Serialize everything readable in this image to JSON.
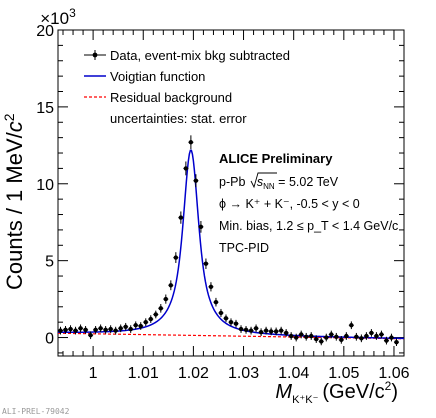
{
  "chart_data": {
    "type": "scatter",
    "xlabel_main": "M",
    "xlabel_sub": "K⁺K⁻",
    "xlabel_unit_pre": "(GeV/c",
    "xlabel_unit_sup": "2",
    "xlabel_unit_post": ")",
    "ylabel_pre": "Counts / 1 MeV/",
    "ylabel_c": "c",
    "ylabel_sup": "2",
    "y_multiplier_base": "×10",
    "y_multiplier_exp": "3",
    "xlim": [
      0.993,
      1.062
    ],
    "ylim": [
      -1.2,
      20
    ],
    "x_ticks": [
      1,
      1.01,
      1.02,
      1.03,
      1.04,
      1.05,
      1.06
    ],
    "x_tick_labels": [
      "1",
      "1.01",
      "1.02",
      "1.03",
      "1.04",
      "1.05",
      "1.06"
    ],
    "y_ticks": [
      0,
      5,
      10,
      15,
      20
    ],
    "y_tick_labels": [
      "0",
      "5",
      "10",
      "15",
      "20"
    ],
    "legend": [
      {
        "label": "Data, event-mix bkg subtracted",
        "style": "marker",
        "color": "#000000"
      },
      {
        "label": "Voigtian function",
        "style": "line",
        "color": "#0000cc"
      },
      {
        "label": "Residual background",
        "style": "dashed",
        "color": "#ff0000"
      },
      {
        "label": "uncertainties: stat. error",
        "style": "none",
        "color": "#000000"
      }
    ],
    "annotations": {
      "title": "ALICE Preliminary",
      "system_pre": "p-Pb ",
      "system_sqrt": "s",
      "system_sub": "NN",
      "system_post": " = 5.02 TeV",
      "decay": "ϕ → K⁺ + K⁻, -0.5 < y < 0",
      "selection": "Min. bias, 1.2 ≤ p_T < 1.4 GeV/c",
      "pid": "TPC-PID"
    },
    "fit": {
      "mass": 1.0195,
      "width": 0.00426,
      "sigma": 0.0012,
      "peak": 12.2,
      "bkg_intercept_x": 0.993,
      "bkg_intercept_y": 0.28,
      "bkg_end_x": 1.062,
      "bkg_end_y": -0.08
    },
    "series": [
      {
        "name": "Data, event-mix bkg subtracted",
        "x": [
          0.9935,
          0.9945,
          0.9955,
          0.9965,
          0.9975,
          0.9985,
          0.9995,
          1.0005,
          1.0015,
          1.0025,
          1.0035,
          1.0045,
          1.0055,
          1.0065,
          1.0075,
          1.0085,
          1.0095,
          1.0105,
          1.0115,
          1.0125,
          1.0135,
          1.0145,
          1.0155,
          1.0165,
          1.0175,
          1.0185,
          1.0195,
          1.0205,
          1.0215,
          1.0225,
          1.0235,
          1.0245,
          1.0255,
          1.0265,
          1.0275,
          1.0285,
          1.0295,
          1.0305,
          1.0315,
          1.0325,
          1.0335,
          1.0345,
          1.0355,
          1.0365,
          1.0375,
          1.0385,
          1.0395,
          1.0405,
          1.0415,
          1.0425,
          1.0435,
          1.0445,
          1.0455,
          1.0465,
          1.0475,
          1.0485,
          1.0495,
          1.0505,
          1.0515,
          1.0525,
          1.0535,
          1.0545,
          1.0555,
          1.0565,
          1.0575,
          1.0585,
          1.0595,
          1.0605
        ],
        "y": [
          0.45,
          0.5,
          0.55,
          0.45,
          0.6,
          0.5,
          0.15,
          0.5,
          0.6,
          0.5,
          0.55,
          0.45,
          0.6,
          0.7,
          0.55,
          0.8,
          0.75,
          1.0,
          1.2,
          1.5,
          1.9,
          2.5,
          3.4,
          5.2,
          7.8,
          11.0,
          12.7,
          10.2,
          7.2,
          4.8,
          3.3,
          2.3,
          1.6,
          1.25,
          1.0,
          0.9,
          0.55,
          0.5,
          0.45,
          0.6,
          0.35,
          0.45,
          0.4,
          0.4,
          0.45,
          0.3,
          0.1,
          0.0,
          0.2,
          0.05,
          0.1,
          -0.1,
          -0.25,
          0.0,
          0.2,
          0.05,
          -0.15,
          0.1,
          0.8,
          0.05,
          -0.05,
          0.1,
          0.3,
          0.1,
          0.2,
          -0.2,
          0.0,
          -0.3
        ],
        "yerr": [
          0.25,
          0.25,
          0.25,
          0.25,
          0.25,
          0.25,
          0.25,
          0.25,
          0.25,
          0.25,
          0.25,
          0.25,
          0.25,
          0.25,
          0.25,
          0.25,
          0.25,
          0.25,
          0.25,
          0.25,
          0.28,
          0.3,
          0.32,
          0.35,
          0.4,
          0.45,
          0.45,
          0.42,
          0.38,
          0.34,
          0.3,
          0.28,
          0.26,
          0.25,
          0.25,
          0.25,
          0.25,
          0.25,
          0.25,
          0.25,
          0.25,
          0.25,
          0.25,
          0.25,
          0.25,
          0.25,
          0.25,
          0.25,
          0.25,
          0.25,
          0.25,
          0.25,
          0.25,
          0.25,
          0.25,
          0.25,
          0.25,
          0.25,
          0.25,
          0.25,
          0.25,
          0.25,
          0.25,
          0.25,
          0.25,
          0.25,
          0.25,
          0.25
        ]
      }
    ]
  },
  "footer": "ALI-PREL-79042"
}
